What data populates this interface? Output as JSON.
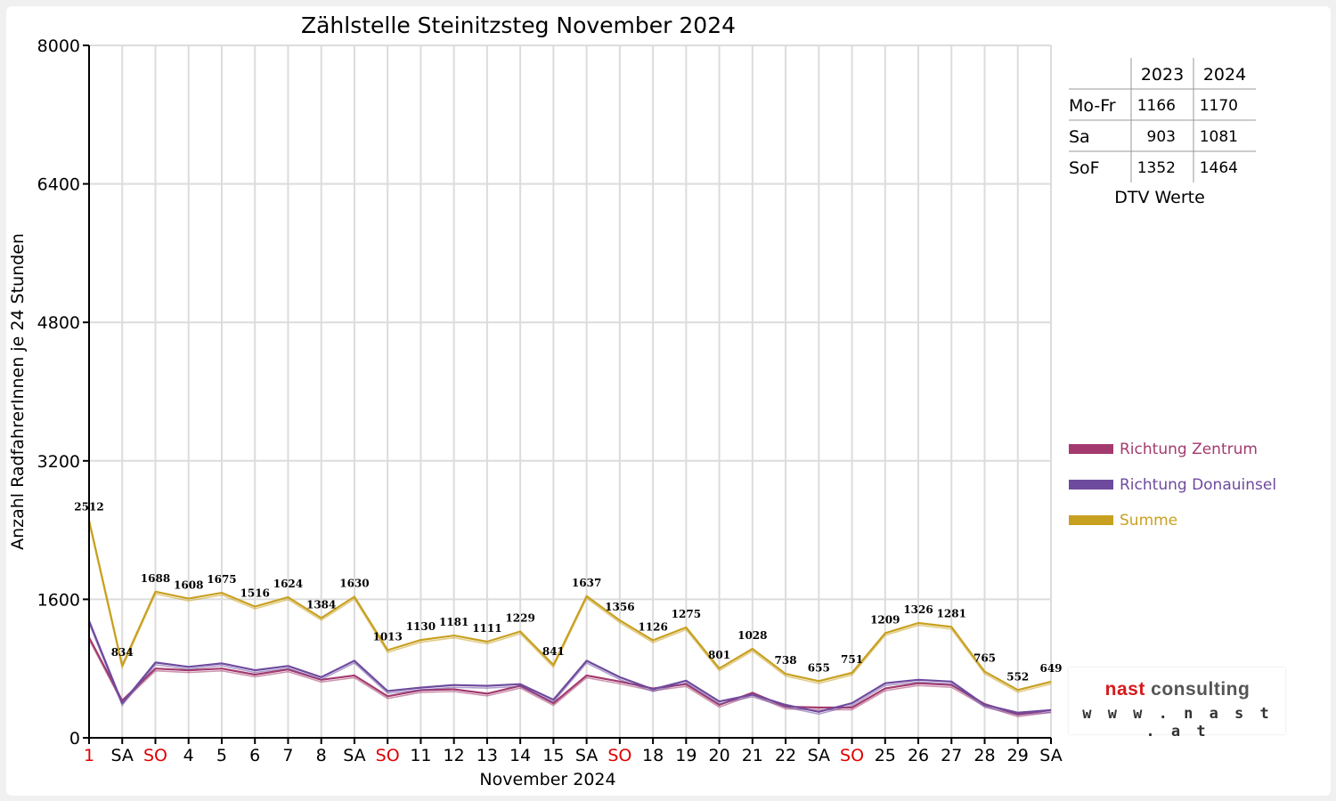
{
  "chart_data": {
    "type": "line",
    "title": "Zählstelle Steinitzsteg November 2024",
    "xlabel": "November 2024",
    "ylabel": "Anzahl RadfahrerInnen je 24 Stunden",
    "ylim": [
      0,
      8000
    ],
    "yticks": [
      0,
      1600,
      3200,
      4800,
      6400,
      8000
    ],
    "grid": true,
    "legend_position": "right",
    "categories": [
      "1",
      "SA",
      "SO",
      "4",
      "5",
      "6",
      "7",
      "8",
      "SA",
      "SO",
      "11",
      "12",
      "13",
      "14",
      "15",
      "SA",
      "SO",
      "18",
      "19",
      "20",
      "21",
      "22",
      "SA",
      "SO",
      "25",
      "26",
      "27",
      "28",
      "29",
      "SA"
    ],
    "red_categories": [
      0,
      2,
      9,
      16,
      23
    ],
    "series": [
      {
        "name": "Richtung Zentrum",
        "color": "#a33a6e",
        "values": [
          1160,
          430,
          800,
          780,
          800,
          730,
          790,
          670,
          720,
          480,
          550,
          560,
          510,
          600,
          400,
          720,
          650,
          570,
          620,
          380,
          520,
          360,
          350,
          350,
          570,
          630,
          610,
          390,
          270,
          320
        ]
      },
      {
        "name": "Richtung Donauinsel",
        "color": "#6e4a9e",
        "values": [
          1350,
          400,
          870,
          820,
          860,
          780,
          830,
          700,
          890,
          540,
          580,
          610,
          600,
          620,
          440,
          890,
          700,
          560,
          660,
          420,
          500,
          380,
          300,
          400,
          630,
          670,
          650,
          380,
          290,
          320
        ]
      },
      {
        "name": "Summe",
        "color": "#c8a020",
        "values": [
          2512,
          834,
          1688,
          1608,
          1675,
          1516,
          1624,
          1384,
          1630,
          1013,
          1130,
          1181,
          1111,
          1229,
          841,
          1637,
          1356,
          1126,
          1275,
          801,
          1028,
          738,
          655,
          751,
          1209,
          1326,
          1281,
          765,
          552,
          649
        ],
        "data_labels": [
          "2512",
          "834",
          "1688",
          "1608",
          "1675",
          "1516",
          "1624",
          "1384",
          "1630",
          "1013",
          "1130",
          "1181",
          "1111",
          "1229",
          "841",
          "1637",
          "1356",
          "1126",
          "1275",
          "801",
          "1028",
          "738",
          "655",
          "751",
          "1209",
          "1326",
          "1281",
          "765",
          "552",
          "649"
        ]
      }
    ]
  },
  "dtv_table": {
    "caption": "DTV Werte",
    "columns": [
      "",
      "2023",
      "2024"
    ],
    "rows": [
      {
        "label": "Mo-Fr",
        "v2023": "1166",
        "v2024": "1170"
      },
      {
        "label": "Sa",
        "v2023": "903",
        "v2024": "1081"
      },
      {
        "label": "SoF",
        "v2023": "1352",
        "v2024": "1464"
      }
    ]
  },
  "logo": {
    "word1": "nast",
    "word2": "consulting",
    "url": "w w w . n a s t . a t"
  }
}
